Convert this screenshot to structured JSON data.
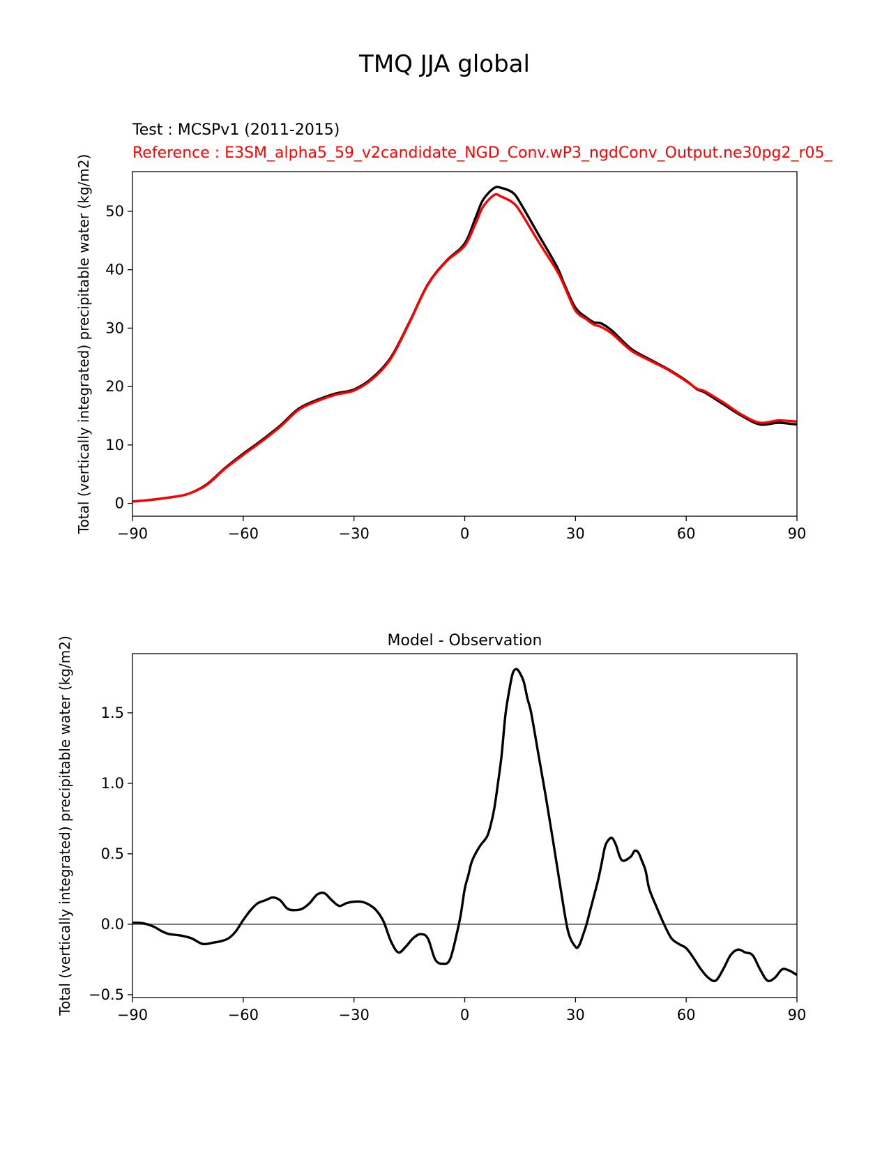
{
  "figure": {
    "suptitle": "TMQ JJA global",
    "test_label": "Test : MCSPv1 (2011-2015)",
    "reference_label": "Reference : E3SM_alpha5_59_v2candidate_NGD_Conv.wP3_ngdConv_Output.ne30pg2_r05_"
  },
  "colors": {
    "test": "#000000",
    "reference": "#ff0000",
    "zero_line": "#808080"
  },
  "chart_data": [
    {
      "type": "line",
      "title": "",
      "xlabel": "",
      "ylabel": "Total (vertically integrated) precipitable water (kg/m2)",
      "xlim": [
        -90,
        90
      ],
      "ylim": [
        -2.2,
        56.8
      ],
      "xticks": [
        -90,
        -60,
        -30,
        0,
        30,
        60,
        90
      ],
      "xtick_labels": [
        "−90",
        "−60",
        "−30",
        "0",
        "30",
        "60",
        "90"
      ],
      "yticks": [
        0,
        10,
        20,
        30,
        40,
        50
      ],
      "ytick_labels": [
        "0",
        "10",
        "20",
        "30",
        "40",
        "50"
      ],
      "grid": false,
      "series": [
        {
          "name": "Test : MCSPv1 (2011-2015)",
          "color": "#000000",
          "x": [
            -90,
            -85,
            -80,
            -75,
            -70,
            -65,
            -60,
            -55,
            -50,
            -45,
            -40,
            -35,
            -30,
            -25,
            -20,
            -15,
            -10,
            -5,
            0,
            3,
            5,
            8,
            10,
            13,
            15,
            20,
            25,
            27,
            30,
            33,
            35,
            37,
            40,
            45,
            50,
            55,
            60,
            63,
            65,
            70,
            75,
            80,
            85,
            90
          ],
          "y": [
            0.3,
            0.6,
            1.0,
            1.6,
            3.2,
            6.0,
            8.5,
            10.8,
            13.3,
            16.2,
            17.7,
            18.8,
            19.5,
            21.5,
            25.0,
            31.0,
            37.5,
            41.5,
            44.5,
            49.0,
            52.0,
            54.0,
            54.0,
            53.2,
            51.5,
            46.0,
            40.5,
            37.5,
            33.5,
            31.8,
            31.0,
            30.8,
            29.5,
            26.5,
            24.7,
            23.0,
            21.0,
            19.5,
            19.0,
            17.0,
            15.0,
            13.5,
            13.8,
            13.5
          ]
        },
        {
          "name": "Reference : E3SM_alpha5_59_v2candidate_NGD_Conv.wP3_ngdConv_Output.ne30pg2_r05_",
          "color": "#ff0000",
          "x": [
            -90,
            -85,
            -80,
            -75,
            -70,
            -65,
            -60,
            -55,
            -50,
            -45,
            -40,
            -35,
            -30,
            -25,
            -20,
            -15,
            -10,
            -5,
            0,
            3,
            5,
            8,
            10,
            13,
            15,
            20,
            25,
            27,
            30,
            33,
            35,
            37,
            40,
            45,
            50,
            55,
            60,
            63,
            65,
            70,
            75,
            80,
            85,
            90
          ],
          "y": [
            0.3,
            0.6,
            1.0,
            1.6,
            3.1,
            5.9,
            8.3,
            10.6,
            13.1,
            16.0,
            17.5,
            18.6,
            19.3,
            21.3,
            24.8,
            30.9,
            37.4,
            41.4,
            44.1,
            48.0,
            50.8,
            52.8,
            52.5,
            51.5,
            50.0,
            44.8,
            39.8,
            37.2,
            33.0,
            31.5,
            30.6,
            30.2,
            29.0,
            26.2,
            24.5,
            22.9,
            20.9,
            19.6,
            19.2,
            17.3,
            15.2,
            13.8,
            14.2,
            14.0
          ]
        }
      ]
    },
    {
      "type": "line",
      "title": "Model - Observation",
      "xlabel": "",
      "ylabel": "Total (vertically integrated) precipitable water (kg/m2)",
      "xlim": [
        -90,
        90
      ],
      "ylim": [
        -0.52,
        1.92
      ],
      "xticks": [
        -90,
        -60,
        -30,
        0,
        30,
        60,
        90
      ],
      "xtick_labels": [
        "−90",
        "−60",
        "−30",
        "0",
        "30",
        "60",
        "90"
      ],
      "yticks": [
        -0.5,
        0.0,
        0.5,
        1.0,
        1.5
      ],
      "ytick_labels": [
        "−0.5",
        "0.0",
        "0.5",
        "1.0",
        "1.5"
      ],
      "grid": false,
      "zero_line": 0,
      "series": [
        {
          "name": "Model - Observation",
          "color": "#000000",
          "x": [
            -90,
            -88,
            -86,
            -84,
            -82,
            -80,
            -77,
            -74,
            -71,
            -68,
            -66,
            -64,
            -62,
            -60,
            -58,
            -56,
            -54,
            -52,
            -50,
            -48,
            -46,
            -44,
            -42,
            -40,
            -38,
            -36,
            -34,
            -32,
            -30,
            -28,
            -26,
            -24,
            -22,
            -20,
            -18,
            -16,
            -14,
            -12,
            -10,
            -8,
            -6,
            -4,
            -2,
            -1,
            0,
            1,
            2,
            4,
            6,
            7,
            8,
            9,
            10,
            11,
            12,
            13,
            14,
            15,
            16,
            17,
            18,
            20,
            22,
            24,
            26,
            28,
            30,
            31,
            32,
            33,
            34,
            36,
            37,
            38,
            39,
            40,
            41,
            42,
            43,
            45,
            46,
            47,
            48,
            49,
            50,
            52,
            54,
            56,
            58,
            60,
            62,
            64,
            66,
            68,
            70,
            72,
            74,
            76,
            78,
            80,
            82,
            84,
            86,
            88,
            90
          ],
          "y": [
            0.01,
            0.01,
            0.0,
            -0.02,
            -0.05,
            -0.07,
            -0.08,
            -0.1,
            -0.14,
            -0.13,
            -0.12,
            -0.1,
            -0.05,
            0.03,
            0.1,
            0.15,
            0.17,
            0.19,
            0.17,
            0.11,
            0.1,
            0.11,
            0.15,
            0.21,
            0.22,
            0.17,
            0.13,
            0.15,
            0.16,
            0.16,
            0.14,
            0.1,
            0.02,
            -0.12,
            -0.2,
            -0.16,
            -0.1,
            -0.07,
            -0.1,
            -0.25,
            -0.28,
            -0.25,
            -0.05,
            0.08,
            0.25,
            0.35,
            0.45,
            0.55,
            0.62,
            0.7,
            0.82,
            1.0,
            1.2,
            1.48,
            1.65,
            1.78,
            1.81,
            1.78,
            1.72,
            1.6,
            1.5,
            1.2,
            0.9,
            0.58,
            0.25,
            -0.05,
            -0.16,
            -0.15,
            -0.08,
            0.0,
            0.1,
            0.3,
            0.42,
            0.55,
            0.6,
            0.61,
            0.56,
            0.48,
            0.45,
            0.48,
            0.52,
            0.51,
            0.45,
            0.38,
            0.25,
            0.12,
            0.0,
            -0.1,
            -0.14,
            -0.17,
            -0.24,
            -0.32,
            -0.38,
            -0.4,
            -0.32,
            -0.22,
            -0.18,
            -0.2,
            -0.22,
            -0.32,
            -0.4,
            -0.38,
            -0.32,
            -0.33,
            -0.36
          ]
        }
      ]
    }
  ]
}
